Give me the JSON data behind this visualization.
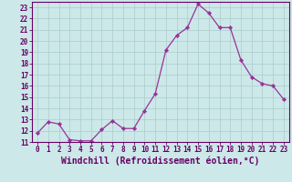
{
  "x": [
    0,
    1,
    2,
    3,
    4,
    5,
    6,
    7,
    8,
    9,
    10,
    11,
    12,
    13,
    14,
    15,
    16,
    17,
    18,
    19,
    20,
    21,
    22,
    23
  ],
  "y": [
    11.8,
    12.8,
    12.6,
    11.2,
    11.1,
    11.1,
    12.1,
    12.9,
    12.2,
    12.2,
    13.8,
    15.3,
    19.2,
    20.5,
    21.2,
    23.3,
    22.5,
    21.2,
    21.2,
    18.3,
    16.8,
    16.2,
    16.0,
    14.8
  ],
  "line_color": "#993399",
  "marker": "D",
  "marker_size": 2.2,
  "bg_color": "#cce8e8",
  "grid_color": "#aacccc",
  "xlabel": "Windchill (Refroidissement éolien,°C)",
  "ylim": [
    11,
    23.5
  ],
  "xlim": [
    -0.5,
    23.5
  ],
  "yticks": [
    11,
    12,
    13,
    14,
    15,
    16,
    17,
    18,
    19,
    20,
    21,
    22,
    23
  ],
  "xticks": [
    0,
    1,
    2,
    3,
    4,
    5,
    6,
    7,
    8,
    9,
    10,
    11,
    12,
    13,
    14,
    15,
    16,
    17,
    18,
    19,
    20,
    21,
    22,
    23
  ],
  "tick_fontsize": 5.5,
  "xlabel_fontsize": 7.0,
  "tick_color": "#660066",
  "axis_bg": "#cce8e8",
  "spine_color": "#660066",
  "line_width": 0.9
}
